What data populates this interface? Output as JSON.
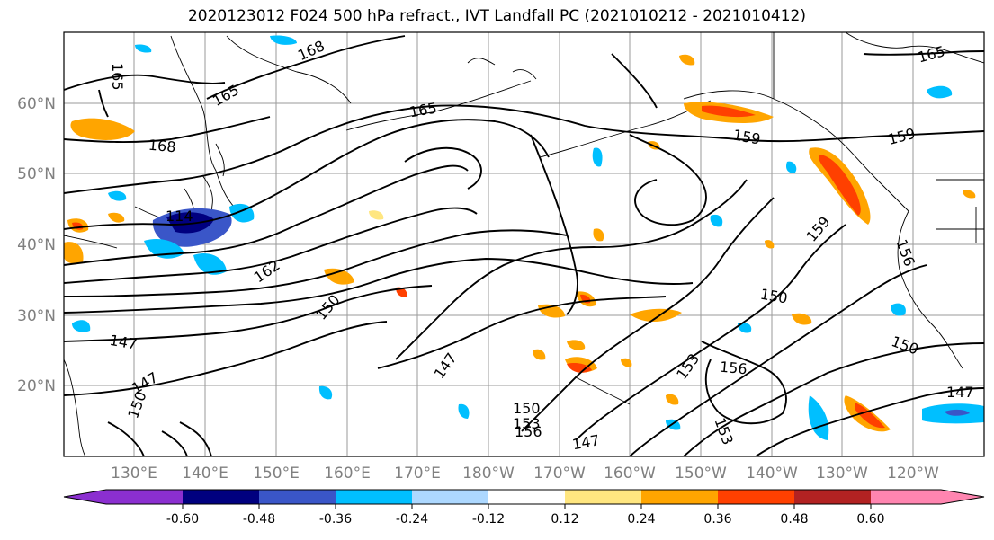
{
  "title": "2020123012 F024 500 hPa refract., IVT Landfall PC (2021010212 - 2021010412)",
  "lat_labels": [
    "60°N",
    "50°N",
    "40°N",
    "30°N",
    "20°N"
  ],
  "lon_labels": [
    "130°E",
    "140°E",
    "150°E",
    "160°E",
    "170°E",
    "180°W",
    "170°W",
    "160°W",
    "150°W",
    "140°W",
    "130°W",
    "120°W"
  ],
  "contour_labels": [
    {
      "text": "165",
      "id": "c165a"
    },
    {
      "text": "168",
      "id": "c168a"
    },
    {
      "text": "165",
      "id": "c165b"
    },
    {
      "text": "165",
      "id": "c165c"
    },
    {
      "text": "168",
      "id": "c168b"
    },
    {
      "text": "165",
      "id": "c165d"
    },
    {
      "text": "159",
      "id": "c159a"
    },
    {
      "text": "159",
      "id": "c159b"
    },
    {
      "text": "159",
      "id": "c159c"
    },
    {
      "text": "156",
      "id": "c156a"
    },
    {
      "text": "162",
      "id": "c162a"
    },
    {
      "text": "150",
      "id": "c150a"
    },
    {
      "text": "150",
      "id": "c150b"
    },
    {
      "text": "150",
      "id": "c150c"
    },
    {
      "text": "147",
      "id": "c147a"
    },
    {
      "text": "147",
      "id": "c147b"
    },
    {
      "text": "147",
      "id": "c147c"
    },
    {
      "text": "153",
      "id": "c153a"
    },
    {
      "text": "156",
      "id": "c156b"
    },
    {
      "text": "147",
      "id": "c147d"
    },
    {
      "text": "147",
      "id": "c147e"
    },
    {
      "text": "150",
      "id": "c150d"
    },
    {
      "text": "153",
      "id": "c153b"
    },
    {
      "text": "156",
      "id": "c156c"
    },
    {
      "text": "153",
      "id": "c153c"
    },
    {
      "text": "150",
      "id": "c150e"
    },
    {
      "text": "114",
      "id": "c114"
    }
  ],
  "colorbar": {
    "ticks": [
      "-0.60",
      "-0.48",
      "-0.36",
      "-0.24",
      "-0.12",
      "0.12",
      "0.24",
      "0.36",
      "0.48",
      "0.60"
    ],
    "colors": [
      "#8b2fd0",
      "#00007f",
      "#3a56c8",
      "#00bfff",
      "#add8ff",
      "#ffffff",
      "#ffe680",
      "#ffa500",
      "#ff4000",
      "#b22222",
      "#ff85b0"
    ]
  }
}
